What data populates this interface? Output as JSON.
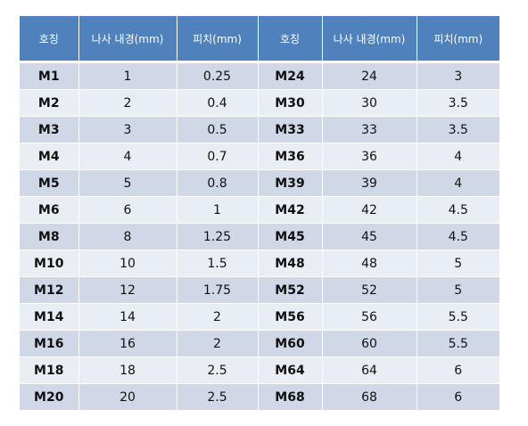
{
  "header": {
    "col1": "호칭",
    "col2": "나사 내경(mm)",
    "col3": "피치(mm)",
    "col4": "호칭",
    "col5": "나사 내경(mm)",
    "col6": "피치(mm)"
  },
  "rows": [
    {
      "name_a": "M1",
      "dia_a": "1",
      "pitch_a": "0.25",
      "name_b": "M24",
      "dia_b": "24",
      "pitch_b": "3"
    },
    {
      "name_a": "M2",
      "dia_a": "2",
      "pitch_a": "0.4",
      "name_b": "M30",
      "dia_b": "30",
      "pitch_b": "3.5"
    },
    {
      "name_a": "M3",
      "dia_a": "3",
      "pitch_a": "0.5",
      "name_b": "M33",
      "dia_b": "33",
      "pitch_b": "3.5"
    },
    {
      "name_a": "M4",
      "dia_a": "4",
      "pitch_a": "0.7",
      "name_b": "M36",
      "dia_b": "36",
      "pitch_b": "4"
    },
    {
      "name_a": "M5",
      "dia_a": "5",
      "pitch_a": "0.8",
      "name_b": "M39",
      "dia_b": "39",
      "pitch_b": "4"
    },
    {
      "name_a": "M6",
      "dia_a": "6",
      "pitch_a": "1",
      "name_b": "M42",
      "dia_b": "42",
      "pitch_b": "4.5"
    },
    {
      "name_a": "M8",
      "dia_a": "8",
      "pitch_a": "1.25",
      "name_b": "M45",
      "dia_b": "45",
      "pitch_b": "4.5"
    },
    {
      "name_a": "M10",
      "dia_a": "10",
      "pitch_a": "1.5",
      "name_b": "M48",
      "dia_b": "48",
      "pitch_b": "5"
    },
    {
      "name_a": "M12",
      "dia_a": "12",
      "pitch_a": "1.75",
      "name_b": "M52",
      "dia_b": "52",
      "pitch_b": "5"
    },
    {
      "name_a": "M14",
      "dia_a": "14",
      "pitch_a": "2",
      "name_b": "M56",
      "dia_b": "56",
      "pitch_b": "5.5"
    },
    {
      "name_a": "M16",
      "dia_a": "16",
      "pitch_a": "2",
      "name_b": "M60",
      "dia_b": "60",
      "pitch_b": "5.5"
    },
    {
      "name_a": "M18",
      "dia_a": "18",
      "pitch_a": "2.5",
      "name_b": "M64",
      "dia_b": "64",
      "pitch_b": "6"
    },
    {
      "name_a": "M20",
      "dia_a": "20",
      "pitch_a": "2.5",
      "name_b": "M68",
      "dia_b": "68",
      "pitch_b": "6"
    }
  ],
  "colors": {
    "header_bg": "#4f81bd",
    "row_odd_bg": "#d0d8e8",
    "row_even_bg": "#e9edf4"
  }
}
